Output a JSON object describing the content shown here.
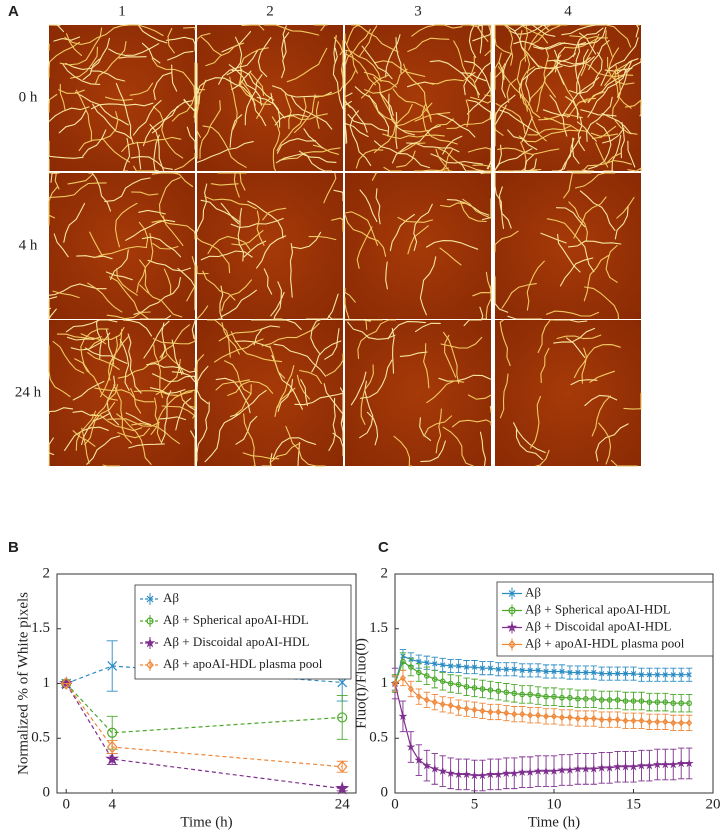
{
  "panel_labels": [
    "A",
    "B",
    "C"
  ],
  "panel_a": {
    "columns": [
      "1",
      "2",
      "3",
      "4"
    ],
    "rows": [
      "0 h",
      "4 h",
      "24 h"
    ]
  },
  "chart_data": [
    {
      "type": "line",
      "xlabel": "Time (h)",
      "ylabel": "Normalized % of White pixels",
      "x": [
        0,
        4,
        24
      ],
      "xlim": [
        -0.8,
        25.2
      ],
      "xticks": [
        0,
        4,
        24
      ],
      "ylim": [
        0,
        2
      ],
      "yticks": [
        0,
        0.5,
        1,
        1.5,
        2
      ],
      "grid": false,
      "legend": "upper right",
      "line_style": "dashed",
      "series": [
        {
          "name": "Aβ",
          "color": "#2b8cc4",
          "marker": "x",
          "values": [
            1,
            1.16,
            1.01
          ],
          "errors": [
            0,
            0.23,
            0.17
          ]
        },
        {
          "name": "Aβ + Spherical apoAI-HDL",
          "color": "#4aa82a",
          "marker": "circle",
          "values": [
            1,
            0.55,
            0.69
          ],
          "errors": [
            0,
            0.15,
            0.2
          ]
        },
        {
          "name": "Aβ + Discoidal apoAI-HDL",
          "color": "#7e2f8e",
          "marker": "star",
          "values": [
            1,
            0.31,
            0.04
          ],
          "errors": [
            0,
            0.05,
            0.02
          ]
        },
        {
          "name": "Aβ + apoAI-HDL plasma pool",
          "color": "#f0883a",
          "marker": "diamond",
          "values": [
            1,
            0.42,
            0.24
          ],
          "errors": [
            0,
            0.06,
            0.05
          ]
        }
      ]
    },
    {
      "type": "line",
      "xlabel": "Time (h)",
      "ylabel": "Fluo(t)/Fluo(0)",
      "x": [
        0,
        0.5,
        1,
        1.5,
        2,
        2.5,
        3,
        3.5,
        4,
        4.5,
        5,
        5.5,
        6,
        6.5,
        7,
        7.5,
        8,
        8.5,
        9,
        9.5,
        10,
        10.5,
        11,
        11.5,
        12,
        12.5,
        13,
        13.5,
        14,
        14.5,
        15,
        15.5,
        16,
        16.5,
        17,
        17.5,
        18,
        18.5
      ],
      "xlim": [
        0,
        20
      ],
      "xticks": [
        0,
        5,
        10,
        15,
        20
      ],
      "ylim": [
        0,
        2
      ],
      "yticks": [
        0,
        0.5,
        1,
        1.5,
        2
      ],
      "grid": false,
      "legend": "upper right",
      "line_style": "solid",
      "series": [
        {
          "name": "Aβ",
          "color": "#2b8cc4",
          "marker": "x",
          "error": 0.06,
          "values": [
            1.0,
            1.25,
            1.22,
            1.2,
            1.19,
            1.18,
            1.17,
            1.16,
            1.16,
            1.15,
            1.15,
            1.14,
            1.14,
            1.13,
            1.13,
            1.13,
            1.12,
            1.12,
            1.12,
            1.11,
            1.11,
            1.11,
            1.1,
            1.1,
            1.1,
            1.1,
            1.09,
            1.09,
            1.09,
            1.09,
            1.09,
            1.08,
            1.08,
            1.08,
            1.08,
            1.08,
            1.08,
            1.08
          ]
        },
        {
          "name": "Aβ + Spherical apoAI-HDL",
          "color": "#4aa82a",
          "marker": "circle",
          "error": 0.08,
          "values": [
            1.0,
            1.2,
            1.15,
            1.1,
            1.07,
            1.04,
            1.02,
            1.0,
            0.99,
            0.97,
            0.96,
            0.95,
            0.94,
            0.93,
            0.92,
            0.91,
            0.9,
            0.9,
            0.89,
            0.88,
            0.88,
            0.87,
            0.87,
            0.86,
            0.86,
            0.86,
            0.85,
            0.85,
            0.85,
            0.84,
            0.84,
            0.84,
            0.83,
            0.83,
            0.83,
            0.82,
            0.82,
            0.82
          ]
        },
        {
          "name": "Aβ + Discoidal apoAI-HDL",
          "color": "#7e2f8e",
          "marker": "star",
          "error": 0.14,
          "values": [
            1.0,
            0.7,
            0.42,
            0.3,
            0.25,
            0.22,
            0.2,
            0.18,
            0.17,
            0.17,
            0.16,
            0.16,
            0.17,
            0.17,
            0.18,
            0.18,
            0.19,
            0.19,
            0.2,
            0.2,
            0.2,
            0.21,
            0.21,
            0.22,
            0.22,
            0.22,
            0.23,
            0.23,
            0.24,
            0.24,
            0.24,
            0.25,
            0.25,
            0.26,
            0.26,
            0.26,
            0.27,
            0.27
          ]
        },
        {
          "name": "Aβ + apoAI-HDL plasma pool",
          "color": "#f0883a",
          "marker": "diamond",
          "error": 0.07,
          "values": [
            1.0,
            1.05,
            0.95,
            0.88,
            0.85,
            0.83,
            0.81,
            0.8,
            0.78,
            0.77,
            0.76,
            0.75,
            0.74,
            0.74,
            0.73,
            0.72,
            0.72,
            0.71,
            0.71,
            0.7,
            0.7,
            0.69,
            0.69,
            0.68,
            0.68,
            0.68,
            0.67,
            0.67,
            0.67,
            0.66,
            0.66,
            0.66,
            0.65,
            0.65,
            0.65,
            0.64,
            0.64,
            0.64
          ]
        }
      ]
    }
  ]
}
